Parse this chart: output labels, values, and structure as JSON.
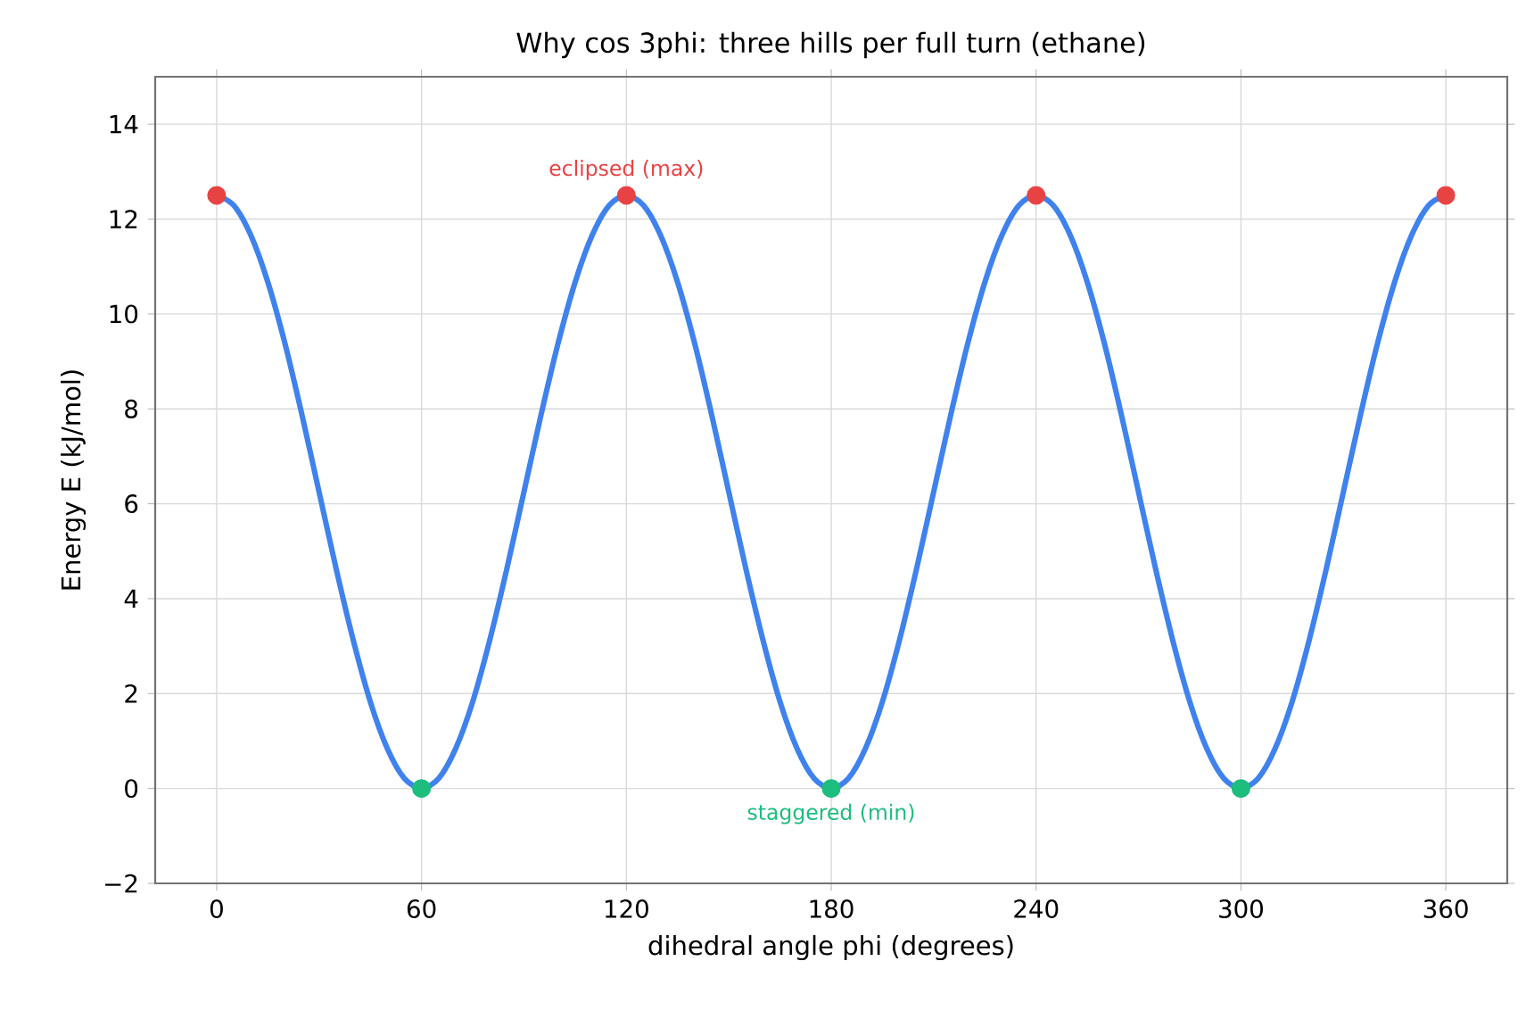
{
  "chart_data": {
    "type": "line",
    "title": "Why cos 3phi: three hills per full turn (ethane)",
    "xlabel": "dihedral angle  phi (degrees)",
    "ylabel": "Energy E  (kJ/mol)",
    "xlim": [
      -18,
      378
    ],
    "ylim": [
      -2,
      15
    ],
    "xticks": [
      0,
      60,
      120,
      180,
      240,
      300,
      360
    ],
    "yticks": [
      {
        "value": -2,
        "label": "−2"
      },
      0,
      2,
      4,
      6,
      8,
      10,
      12,
      14
    ],
    "grid": true,
    "series": [
      {
        "color": "#3f82ee",
        "marker": "none",
        "x": [
          0,
          5,
          10,
          15,
          20,
          25,
          30,
          35,
          40,
          45,
          50,
          55,
          60,
          65,
          70,
          75,
          80,
          85,
          90,
          95,
          100,
          105,
          110,
          115,
          120,
          125,
          130,
          135,
          140,
          145,
          150,
          155,
          160,
          165,
          170,
          175,
          180,
          185,
          190,
          195,
          200,
          205,
          210,
          215,
          220,
          225,
          230,
          235,
          240,
          245,
          250,
          255,
          260,
          265,
          270,
          275,
          280,
          285,
          290,
          295,
          300,
          305,
          310,
          315,
          320,
          325,
          330,
          335,
          340,
          345,
          350,
          355,
          360
        ],
        "values": [
          12.5,
          12.29,
          11.66,
          10.67,
          9.38,
          7.87,
          6.25,
          4.63,
          3.13,
          1.83,
          0.84,
          0.21,
          0,
          0.21,
          0.84,
          1.83,
          3.13,
          4.63,
          6.25,
          7.87,
          9.38,
          10.67,
          11.66,
          12.29,
          12.5,
          12.29,
          11.66,
          10.67,
          9.38,
          7.87,
          6.25,
          4.63,
          3.13,
          1.83,
          0.84,
          0.21,
          0,
          0.21,
          0.84,
          1.83,
          3.13,
          4.63,
          6.25,
          7.87,
          9.38,
          10.67,
          11.66,
          12.29,
          12.5,
          12.29,
          11.66,
          10.67,
          9.38,
          7.87,
          6.25,
          4.63,
          3.13,
          1.83,
          0.84,
          0.21,
          0,
          0.21,
          0.84,
          1.83,
          3.13,
          4.63,
          6.25,
          7.87,
          9.38,
          10.67,
          11.66,
          12.29,
          12.5
        ]
      },
      {
        "type": "scatter",
        "color": "#e84343",
        "marker": "circle",
        "x": [
          0,
          120,
          240,
          360
        ],
        "values": [
          12.5,
          12.5,
          12.5,
          12.5
        ]
      },
      {
        "type": "scatter",
        "color": "#1dbd7d",
        "marker": "circle",
        "x": [
          60,
          180,
          300
        ],
        "values": [
          0,
          0,
          0
        ]
      }
    ],
    "annotations": [
      {
        "text": "eclipsed (max)",
        "x": 120,
        "y": 12.5
      },
      {
        "text": "staggered (min)",
        "x": 180,
        "y": 0
      }
    ]
  }
}
